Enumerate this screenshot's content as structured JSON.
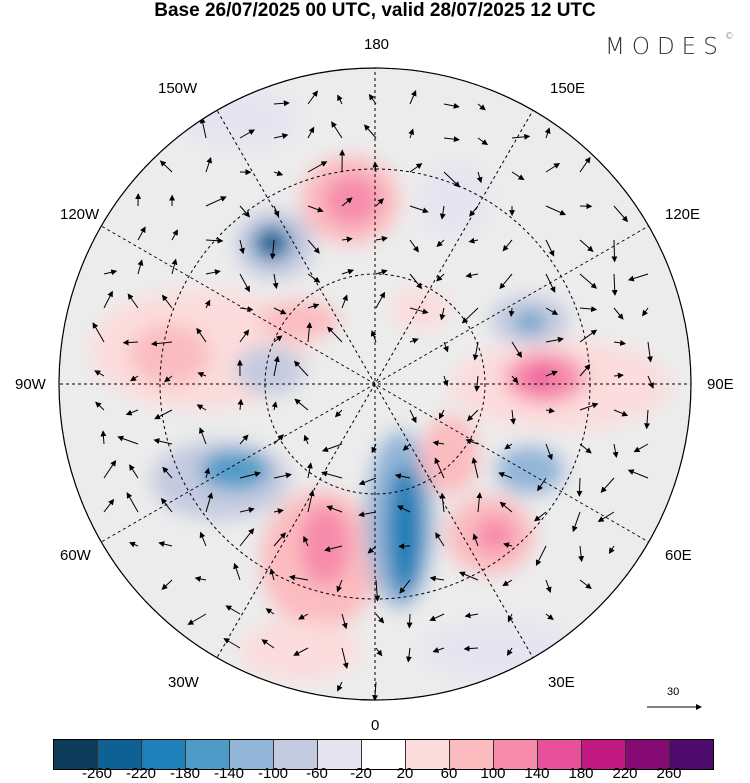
{
  "title": "Base 26/07/2025 00 UTC, valid 28/07/2025 12 UTC",
  "logo": {
    "text": "MODES",
    "mark": "©"
  },
  "longitude_labels": {
    "top": "180",
    "bottom": "0",
    "left": "90W",
    "right": "90E",
    "nw1": "150W",
    "nw2": "120W",
    "ne1": "150E",
    "ne2": "120E",
    "sw1": "60W",
    "sw2": "30W",
    "se1": "60E",
    "se2": "30E"
  },
  "reference_vector": {
    "label": "30"
  },
  "colorbar": {
    "colors": [
      "#0d3b5a",
      "#0f6194",
      "#1f7fb8",
      "#4f9bc8",
      "#93b6d8",
      "#c4cbe0",
      "#e6e4f0",
      "#ffffff",
      "#fcdcdc",
      "#fbbcc0",
      "#f78bab",
      "#e8509a",
      "#c0197f",
      "#860a73",
      "#4f0b6b"
    ],
    "ticks": [
      "-260",
      "-220",
      "-180",
      "-140",
      "-100",
      "-60",
      "-20",
      "20",
      "60",
      "100",
      "140",
      "180",
      "220",
      "260"
    ]
  }
}
